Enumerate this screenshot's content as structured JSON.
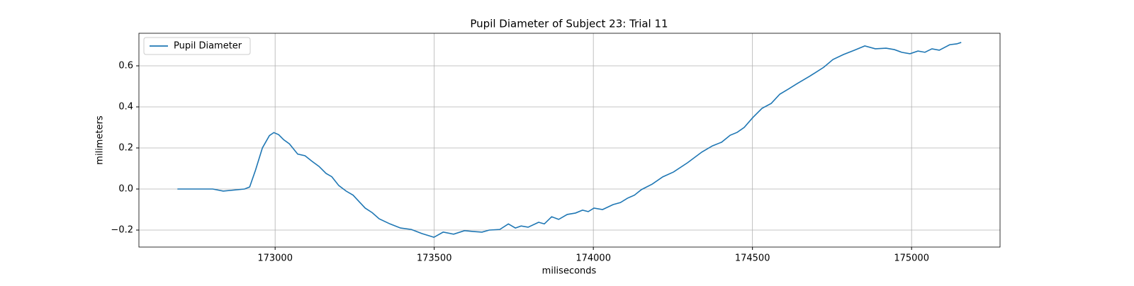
{
  "chart_data": {
    "type": "line",
    "title": "Pupil Diameter of Subject 23: Trial 11",
    "xlabel": "miliseconds",
    "ylabel": "milimeters",
    "x": [
      172693,
      172804,
      172837,
      172904,
      172920,
      172938,
      172960,
      172982,
      172996,
      173011,
      173027,
      173045,
      173071,
      173094,
      173116,
      173138,
      173160,
      173178,
      173200,
      173223,
      173245,
      173283,
      173305,
      173327,
      173361,
      173394,
      173428,
      173461,
      173499,
      173528,
      173561,
      173595,
      173624,
      173650,
      173673,
      173706,
      173733,
      173755,
      173773,
      173795,
      173828,
      173846,
      173869,
      173891,
      173918,
      173944,
      173966,
      173984,
      174002,
      174029,
      174062,
      174085,
      174107,
      174129,
      174151,
      174185,
      174218,
      174252,
      174296,
      174341,
      174374,
      174403,
      174430,
      174452,
      174474,
      174501,
      174530,
      174559,
      174586,
      174612,
      174641,
      174675,
      174697,
      174724,
      174753,
      174786,
      174820,
      174853,
      174886,
      174920,
      174946,
      174969,
      174995,
      175020,
      175042,
      175064,
      175087,
      175120,
      175142,
      175156
    ],
    "series": [
      {
        "name": "Pupil Diameter",
        "color": "#1f77b4",
        "values": [
          0,
          0,
          -0.01,
          0,
          0.01,
          0.09,
          0.2,
          0.26,
          0.275,
          0.265,
          0.24,
          0.22,
          0.17,
          0.162,
          0.135,
          0.11,
          0.076,
          0.06,
          0.017,
          -0.01,
          -0.03,
          -0.093,
          -0.115,
          -0.145,
          -0.17,
          -0.19,
          -0.197,
          -0.217,
          -0.235,
          -0.21,
          -0.22,
          -0.203,
          -0.207,
          -0.21,
          -0.2,
          -0.197,
          -0.17,
          -0.19,
          -0.18,
          -0.186,
          -0.162,
          -0.17,
          -0.135,
          -0.148,
          -0.124,
          -0.117,
          -0.103,
          -0.11,
          -0.093,
          -0.1,
          -0.076,
          -0.066,
          -0.045,
          -0.03,
          -0.003,
          0.024,
          0.059,
          0.083,
          0.128,
          0.18,
          0.21,
          0.228,
          0.262,
          0.276,
          0.3,
          0.348,
          0.393,
          0.417,
          0.462,
          0.486,
          0.514,
          0.545,
          0.566,
          0.593,
          0.631,
          0.655,
          0.676,
          0.697,
          0.683,
          0.686,
          0.679,
          0.666,
          0.659,
          0.672,
          0.666,
          0.683,
          0.676,
          0.703,
          0.707,
          0.714
        ]
      }
    ],
    "xlim": [
      172572,
      175278
    ],
    "xticks": [
      173000,
      173500,
      174000,
      174500,
      175000
    ],
    "ylim": [
      -0.2828,
      0.7586
    ],
    "yticks": [
      {
        "value": -0.2,
        "label": "−0.2"
      },
      {
        "value": 0,
        "label": "0.0"
      },
      0.2,
      0.4,
      0.6
    ],
    "grid": true,
    "legend": "upper-left"
  }
}
